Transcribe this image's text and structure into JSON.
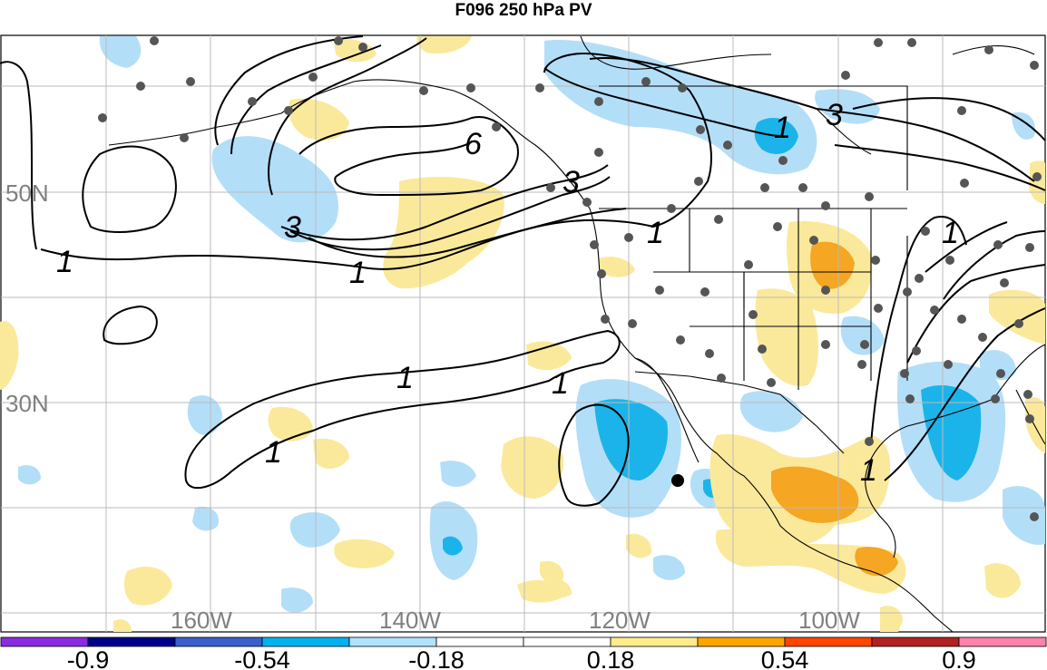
{
  "title": "F096 250 hPa PV",
  "latitude_labels": [
    "50N",
    "30N"
  ],
  "longitude_labels": [
    "160W",
    "140W",
    "120W",
    "100W"
  ],
  "contour_labels": [
    "6",
    "3",
    "3",
    "3",
    "1",
    "1",
    "1",
    "1",
    "1",
    "1",
    "1",
    "1",
    "1"
  ],
  "colorbar": {
    "tick_labels": [
      "-0.9",
      "-0.54",
      "-0.18",
      "0.18",
      "0.54",
      "0.9"
    ],
    "colors": [
      "#8a2be2",
      "#00008b",
      "#3a5fcd",
      "#00b2ee",
      "#b0e2ff",
      "#ffffff",
      "#ffffff",
      "#ffec8b",
      "#ffa500",
      "#ff4500",
      "#b22222",
      "#ff82ab"
    ]
  },
  "colors": {
    "positive_light": "#fbe99b",
    "positive_mid": "#f5a623",
    "negative_light": "#b3def8",
    "negative_mid": "#1bb4ea",
    "station_dot": "#555555",
    "grid": "#bbbbbb"
  }
}
